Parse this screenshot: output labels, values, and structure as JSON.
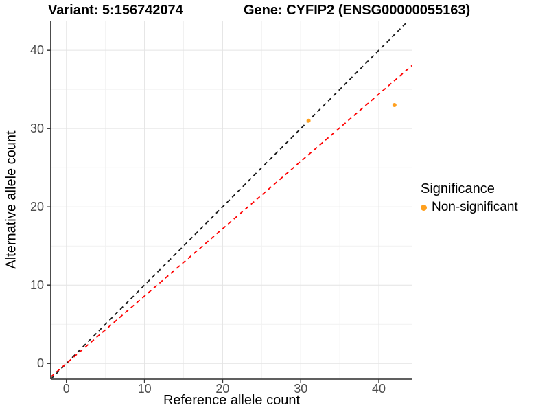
{
  "titles": {
    "variant": "Variant: 5:156742074",
    "gene": "Gene: CYFIP2 (ENSG00000055163)"
  },
  "chart_data": {
    "type": "scatter",
    "xlabel": "Reference allele count",
    "ylabel": "Alternative allele count",
    "xlim": [
      -2,
      44.3
    ],
    "ylim": [
      -2,
      43.7
    ],
    "xticks": [
      0,
      10,
      20,
      30,
      40
    ],
    "yticks": [
      0,
      10,
      20,
      30,
      40
    ],
    "xminor": [
      5,
      15,
      25,
      35
    ],
    "yminor": [
      5,
      15,
      25,
      35
    ],
    "grid": "major+minor",
    "legend": {
      "position": "right",
      "title": "Significance",
      "items": [
        {
          "label": "Non-significant",
          "color": "#FFA01E",
          "shape": "circle"
        }
      ]
    },
    "series": [
      {
        "name": "Non-significant",
        "color": "#FFA01E",
        "points": [
          {
            "x": 31,
            "y": 31
          },
          {
            "x": 42,
            "y": 33
          }
        ]
      }
    ],
    "reference_lines": [
      {
        "name": "identity-line",
        "slope": 1,
        "intercept": 0,
        "color": "#1a1a1a",
        "style": "dashed"
      },
      {
        "name": "expected-ratio-line",
        "slope": 0.86,
        "intercept": 0,
        "color": "#ff0000",
        "style": "dashed"
      }
    ]
  }
}
